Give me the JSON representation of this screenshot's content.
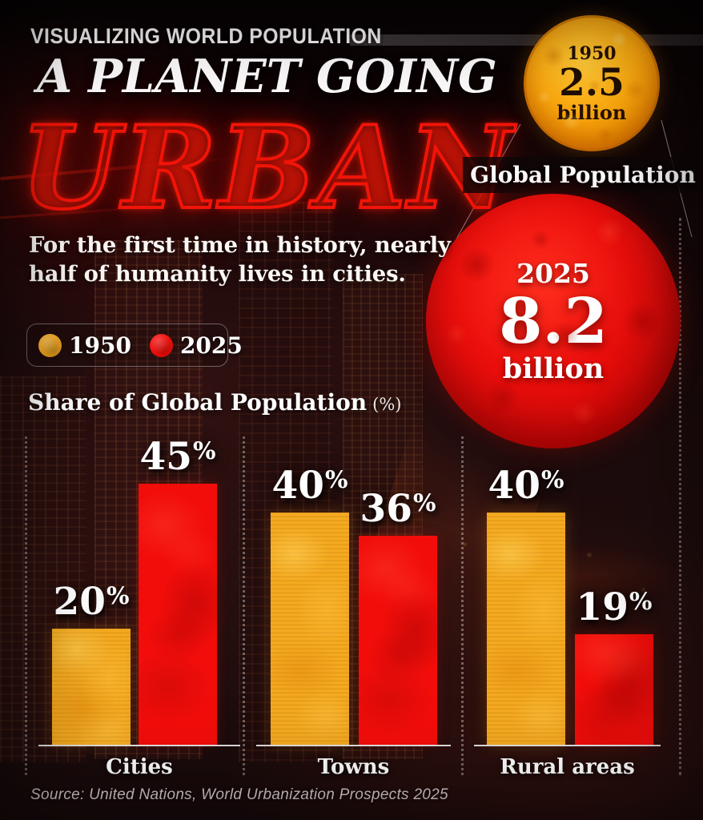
{
  "header": {
    "kicker": "VISUALIZING WORLD POPULATION",
    "title": "A PLANET GOING",
    "title_accent": "URBAN",
    "accent_color": "#F21408"
  },
  "intro": {
    "line1": "For the first time in history, nearly",
    "line2": "half of humanity lives in cities."
  },
  "legend": {
    "items": [
      {
        "label": "1950",
        "color": "#F3A71D"
      },
      {
        "label": "2025",
        "color": "#F20D0A"
      }
    ]
  },
  "section": {
    "title": "Share of Global Population",
    "unit": "(%)"
  },
  "global_population": {
    "label": "Global Population",
    "circles": [
      {
        "year": "1950",
        "value": "2.5",
        "unit": "billion",
        "color": "#F89E08"
      },
      {
        "year": "2025",
        "value": "8.2",
        "unit": "billion",
        "color": "#E30C0C"
      }
    ]
  },
  "chart_data": [
    {
      "type": "bar",
      "title": "Share of Global Population (%)",
      "categories": [
        "Cities",
        "Towns",
        "Rural areas"
      ],
      "series": [
        {
          "name": "1950",
          "color": "#F3A71D",
          "values": [
            20,
            40,
            40
          ]
        },
        {
          "name": "2025",
          "color": "#F20D0A",
          "values": [
            45,
            36,
            19
          ]
        }
      ],
      "unit": "%",
      "ylim": [
        0,
        45
      ],
      "grid": false,
      "legend_position": "top-left",
      "value_labels": true
    },
    {
      "type": "area",
      "note": "proportional-area circles comparing global population",
      "title": "Global Population",
      "x": [
        "1950",
        "2025"
      ],
      "values": [
        2.5,
        8.2
      ],
      "unit": "billion"
    }
  ],
  "source": "Source: United Nations, World Urbanization Prospects 2025"
}
